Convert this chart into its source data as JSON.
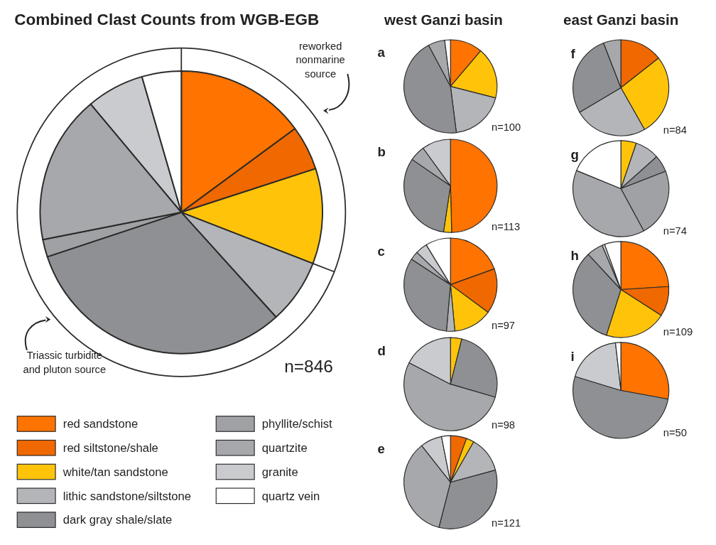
{
  "chart_data": [
    {
      "type": "pie",
      "title": "Combined Clast Counts from WGB-EGB",
      "categories": [
        "red sandstone",
        "red siltstone/shale",
        "white/tan sandstone",
        "lithic sandstone/siltstone",
        "dark gray shale/slate",
        "phyllite/schist",
        "quartzite",
        "granite",
        "quartz vein"
      ],
      "values": [
        14.9,
        5.1,
        10.9,
        7.4,
        31.6,
        2.0,
        17.0,
        6.6,
        4.5
      ],
      "colors": [
        "#ff7300",
        "#f06800",
        "#ffc40a",
        "#b3b5b8",
        "#8e9093",
        "#9fa1a4",
        "#a6a8ab",
        "#c9cbce",
        "#ffffff"
      ],
      "legend": "bottom",
      "annotations": [
        "reworked nonmarine source",
        "Triassic turbidite and pluton source",
        "n=846"
      ]
    },
    {
      "type": "pie",
      "title": "a",
      "subtitle": "west Ganzi basin",
      "values": [
        11.2,
        17.8,
        19.0,
        44.2,
        5.8,
        2.0
      ],
      "colors": [
        "#ff7300",
        "#ffc40a",
        "#b3b5b8",
        "#8e9093",
        "#a6a8ab",
        "#ffffff"
      ],
      "annotations": [
        "n=100"
      ]
    },
    {
      "type": "pie",
      "title": "b",
      "values": [
        49.6,
        2.8,
        32.2,
        5.4,
        10.0
      ],
      "colors": [
        "#ff7300",
        "#ffc40a",
        "#8e9093",
        "#a6a8ab",
        "#c9cbce"
      ],
      "annotations": [
        "n=113"
      ]
    },
    {
      "type": "pie",
      "title": "c",
      "values": [
        19.5,
        15.6,
        13.4,
        2.9,
        32.8,
        3.0,
        4.1,
        8.7
      ],
      "colors": [
        "#ff7300",
        "#f06800",
        "#ffc40a",
        "#b3b5b8",
        "#8e9093",
        "#a6a8ab",
        "#c9cbce",
        "#ffffff"
      ],
      "annotations": [
        "n=97"
      ]
    },
    {
      "type": "pie",
      "title": "d",
      "values": [
        3.9,
        25.6,
        53.1,
        17.4
      ],
      "colors": [
        "#ffc40a",
        "#8e9093",
        "#a6a8ab",
        "#c9cbce"
      ],
      "annotations": [
        "n=98"
      ]
    },
    {
      "type": "pie",
      "title": "e",
      "values": [
        5.6,
        2.7,
        12.5,
        33.2,
        35.4,
        7.5,
        3.1
      ],
      "colors": [
        "#f06800",
        "#ffc40a",
        "#b3b5b8",
        "#8e9093",
        "#a6a8ab",
        "#c9cbce",
        "#ffffff"
      ],
      "annotations": [
        "n=121"
      ]
    },
    {
      "type": "pie",
      "title": "f",
      "subtitle": "east Ganzi basin",
      "values": [
        14.4,
        27.4,
        24.7,
        27.6,
        5.9
      ],
      "colors": [
        "#f06800",
        "#ffc40a",
        "#b3b5b8",
        "#8e9093",
        "#a6a8ab"
      ],
      "annotations": [
        "n=84"
      ]
    },
    {
      "type": "pie",
      "title": "g",
      "values": [
        5.2,
        8.2,
        5.7,
        23.0,
        39.1,
        18.8
      ],
      "colors": [
        "#ffc40a",
        "#b3b5b8",
        "#8e9093",
        "#9fa1a4",
        "#a6a8ab",
        "#ffffff"
      ],
      "annotations": [
        "n=74"
      ]
    },
    {
      "type": "pie",
      "title": "h",
      "values": [
        24.0,
        10.1,
        20.8,
        33.2,
        5.5,
        0.9,
        5.5
      ],
      "colors": [
        "#ff7300",
        "#f06800",
        "#ffc40a",
        "#8e9093",
        "#a6a8ab",
        "#c9cbce",
        "#ffffff"
      ],
      "annotations": [
        "n=109"
      ]
    },
    {
      "type": "pie",
      "title": "i",
      "values": [
        27.9,
        51.8,
        18.5,
        1.8
      ],
      "colors": [
        "#ff7300",
        "#8e9093",
        "#c9cbce",
        "#ffffff"
      ],
      "annotations": [
        "n=50"
      ]
    }
  ]
}
